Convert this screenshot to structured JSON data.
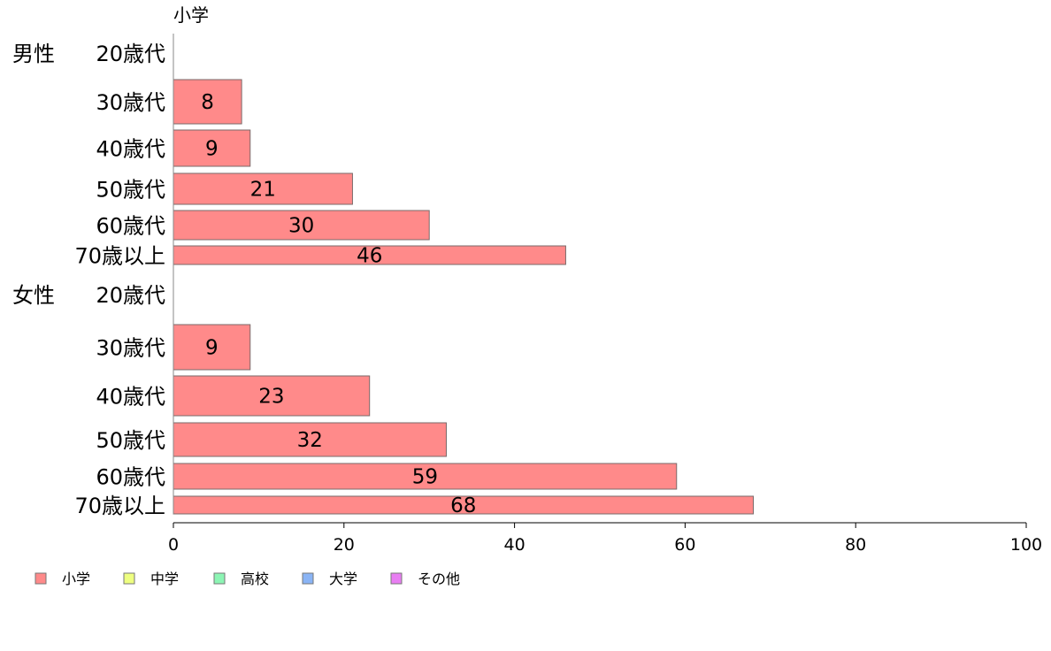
{
  "chart_data": {
    "type": "bar",
    "orientation": "horizontal",
    "header": "小学",
    "groups": [
      {
        "name": "男性",
        "categories": [
          "20歳代",
          "30歳代",
          "40歳代",
          "50歳代",
          "60歳代",
          "70歳以上"
        ],
        "values": [
          0,
          8,
          9,
          21,
          30,
          46
        ],
        "data_labels": [
          "",
          "8",
          "9",
          "21",
          "30",
          "46"
        ]
      },
      {
        "name": "女性",
        "categories": [
          "20歳代",
          "30歳代",
          "40歳代",
          "50歳代",
          "60歳代",
          "70歳以上"
        ],
        "values": [
          0,
          9,
          23,
          32,
          59,
          68
        ],
        "data_labels": [
          "",
          "9",
          "23",
          "32",
          "59",
          "68"
        ]
      }
    ],
    "xlim": [
      0,
      100
    ],
    "xticks": [
      "0",
      "20",
      "40",
      "60",
      "80",
      "100"
    ],
    "grid": false,
    "bar_color": "#ff8a8a",
    "bar_stroke": "#7a6a6a",
    "legend": {
      "placement": "bottom-left",
      "items": [
        {
          "label": "小学",
          "color": "#ff8a8a"
        },
        {
          "label": "中学",
          "color": "#eeff80"
        },
        {
          "label": "高校",
          "color": "#8cf5b4"
        },
        {
          "label": "大学",
          "color": "#8ab4f5"
        },
        {
          "label": "その他",
          "color": "#e87ef2"
        }
      ]
    }
  }
}
